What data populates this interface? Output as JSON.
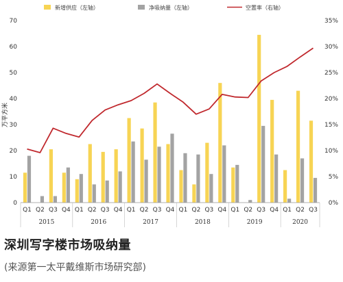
{
  "chart_data": {
    "type": "bar",
    "quarters": [
      "Q1",
      "Q2",
      "Q3",
      "Q4",
      "Q1",
      "Q2",
      "Q3",
      "Q4",
      "Q1",
      "Q2",
      "Q3",
      "Q4",
      "Q1",
      "Q2",
      "Q3",
      "Q4",
      "Q1",
      "Q2",
      "Q3",
      "Q4",
      "Q1",
      "Q2",
      "Q3"
    ],
    "years": [
      {
        "label": "2015",
        "count": 4
      },
      {
        "label": "2016",
        "count": 4
      },
      {
        "label": "2017",
        "count": 4
      },
      {
        "label": "2018",
        "count": 4
      },
      {
        "label": "2019",
        "count": 4
      },
      {
        "label": "2020",
        "count": 3
      }
    ],
    "series": [
      {
        "name": "新增供应（左轴）",
        "kind": "bar",
        "axis": "left",
        "color": "#f7d454",
        "values": [
          11.5,
          0,
          20.5,
          11.5,
          9,
          22.5,
          19.5,
          20.5,
          32.5,
          28.5,
          38.5,
          22.5,
          12.5,
          7,
          23,
          46,
          13.5,
          0,
          64.5,
          39.5,
          12.5,
          43,
          31.5
        ]
      },
      {
        "name": "净吸纳量（左轴）",
        "kind": "bar",
        "axis": "left",
        "color": "#a3a3a3",
        "values": [
          18,
          2.5,
          2.5,
          13.5,
          11,
          7,
          8.5,
          12,
          23.5,
          16.5,
          21.5,
          26.5,
          19,
          18.5,
          11,
          22,
          14.5,
          1,
          29.5,
          18.5,
          1.5,
          17,
          9.5
        ]
      },
      {
        "name": "空置率（右轴）",
        "kind": "line",
        "axis": "right",
        "color": "#c0282d",
        "values": [
          10.3,
          9.6,
          14.3,
          13.3,
          12.6,
          15.8,
          17.8,
          18.8,
          19.6,
          21.0,
          22.8,
          21.0,
          19.3,
          17.0,
          18.0,
          20.8,
          20.3,
          20.2,
          23.4,
          25.0,
          26.2,
          28.0,
          29.7
        ]
      }
    ],
    "left_axis": {
      "min": 0,
      "max": 70,
      "ticks": [
        "0",
        "10",
        "20",
        "30",
        "40",
        "50",
        "60",
        "70"
      ]
    },
    "right_axis": {
      "min": 0,
      "max": 35,
      "ticks": [
        "0%",
        "5%",
        "10%",
        "15%",
        "20%",
        "25%",
        "30%",
        "35%"
      ]
    },
    "ylabel": "万平方米",
    "legend": {
      "placement": "top"
    },
    "grid": false
  },
  "caption": {
    "title": "深圳写字楼市场吸纳量",
    "source": "(来源第一太平戴维斯市场研究部)"
  }
}
